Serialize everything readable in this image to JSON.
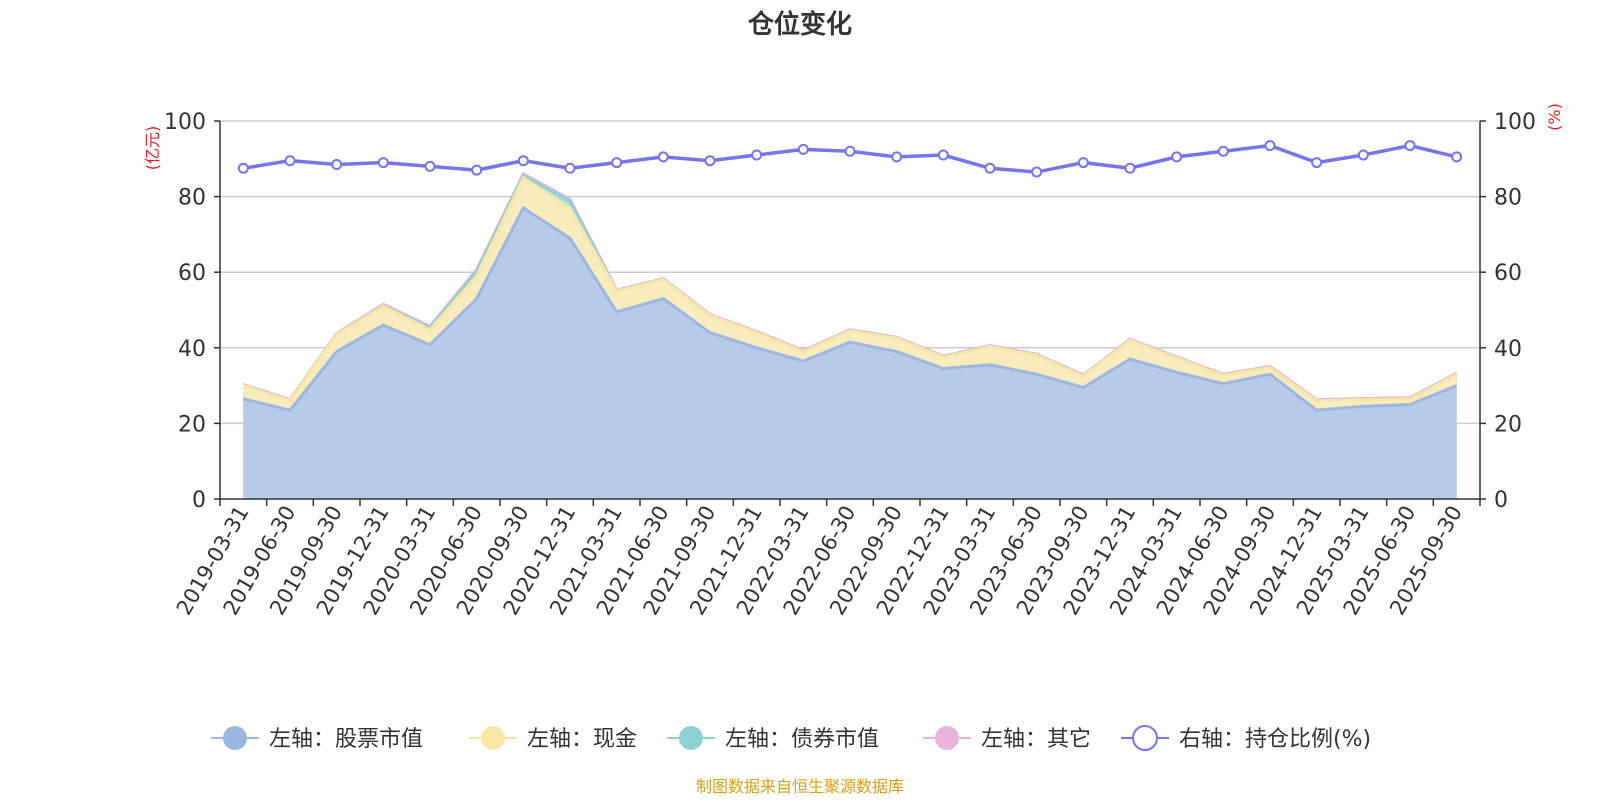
{
  "chart_data": {
    "type": "area",
    "title": "仓位变化",
    "left_axis": {
      "unit": "(亿元)",
      "ylim": [
        0,
        100
      ],
      "ticks": [
        0,
        20,
        40,
        60,
        80,
        100
      ]
    },
    "right_axis": {
      "unit": "(%)",
      "ylim": [
        0,
        100
      ],
      "ticks": [
        0,
        20,
        40,
        60,
        80,
        100
      ]
    },
    "grid": true,
    "legend_position": "bottom",
    "categories": [
      "2019-03-31",
      "2019-06-30",
      "2019-09-30",
      "2019-12-31",
      "2020-03-31",
      "2020-06-30",
      "2020-09-30",
      "2020-12-31",
      "2021-03-31",
      "2021-06-30",
      "2021-09-30",
      "2021-12-31",
      "2022-03-31",
      "2022-06-30",
      "2022-09-30",
      "2022-12-31",
      "2023-03-31",
      "2023-06-30",
      "2023-09-30",
      "2023-12-31",
      "2024-03-31",
      "2024-06-30",
      "2024-09-30",
      "2024-12-31",
      "2025-03-31",
      "2025-06-30",
      "2025-09-30"
    ],
    "series": [
      {
        "name": "左轴：股票市值",
        "axis": "left",
        "stack": true,
        "color": "#9db6df",
        "fill": "#b7cbe9",
        "values": [
          26.5,
          23.5,
          39.0,
          46.0,
          40.8,
          53.0,
          77.0,
          69.0,
          49.5,
          53.0,
          44.0,
          40.0,
          36.5,
          41.5,
          39.0,
          34.5,
          35.5,
          33.0,
          29.5,
          37.0,
          33.5,
          30.5,
          33.0,
          23.5,
          24.5,
          25.0,
          30.0
        ]
      },
      {
        "name": "左轴：现金",
        "axis": "left",
        "stack": true,
        "color": "#f6e7a7",
        "fill": "#f8ebbe",
        "values": [
          3.5,
          2.5,
          4.5,
          5.0,
          4.0,
          6.0,
          8.0,
          8.0,
          5.5,
          5.0,
          4.5,
          4.0,
          2.5,
          3.0,
          3.5,
          3.0,
          4.8,
          5.0,
          3.0,
          5.0,
          3.8,
          2.2,
          1.8,
          2.5,
          1.8,
          1.5,
          3.0
        ]
      },
      {
        "name": "左轴：债券市值",
        "axis": "left",
        "stack": true,
        "color": "#8ed1d4",
        "fill": "#a9dcdc",
        "values": [
          0,
          0,
          0,
          0,
          0.5,
          1.2,
          0.5,
          1.8,
          0,
          0,
          0,
          0,
          0,
          0,
          0,
          0,
          0,
          0,
          0,
          0,
          0,
          0,
          0,
          0,
          0,
          0,
          0
        ]
      },
      {
        "name": "左轴：其它",
        "axis": "left",
        "stack": true,
        "color": "#e8b4dc",
        "fill": "#ecc4e2",
        "values": [
          0.3,
          0.3,
          0.3,
          0.5,
          0.4,
          0.5,
          0.5,
          0.5,
          0.3,
          0.3,
          0.3,
          0.3,
          0.3,
          0.3,
          0.3,
          0.3,
          0.3,
          0.3,
          0.3,
          0.3,
          0.3,
          0.3,
          0.3,
          0.3,
          0.3,
          0.3,
          0.3
        ]
      },
      {
        "name": "右轴：持仓比例(%)",
        "axis": "right",
        "type": "line",
        "color": "#7476ec",
        "values": [
          87.5,
          89.5,
          88.5,
          89.0,
          88.0,
          87.0,
          89.5,
          87.5,
          89.0,
          90.5,
          89.5,
          91.0,
          92.5,
          92.0,
          90.5,
          91.0,
          87.5,
          86.5,
          89.0,
          87.5,
          90.5,
          92.0,
          93.5,
          89.0,
          91.0,
          93.5,
          90.5
        ]
      }
    ],
    "source_note": "制图数据来自恒生聚源数据库"
  }
}
